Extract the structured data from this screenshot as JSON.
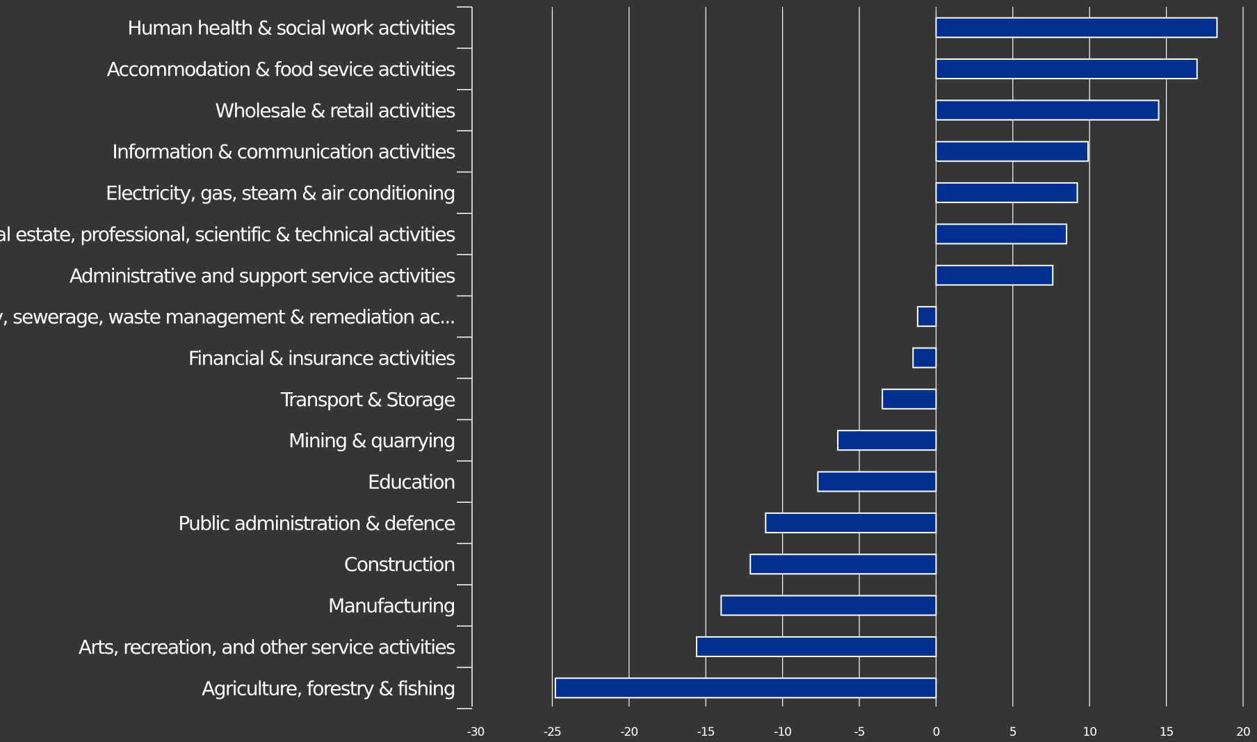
{
  "chart_data": {
    "type": "bar",
    "orientation": "horizontal",
    "categories": [
      "Human health & social work activities",
      "Accommodation & food sevice activities",
      "Wholesale & retail activities",
      "Information & communication activities",
      "Electricity, gas, steam & air conditioning",
      "Real estate, professional, scientific & technical activities",
      "Administrative and support service activities",
      "Water supply, sewerage, waste management & remediation ac...",
      "Financial & insurance activities",
      "Transport & Storage",
      "Mining & quarrying",
      "Education",
      "Public administration & defence",
      "Construction",
      "Manufacturing",
      "Arts, recreation, and other service activities",
      "Agriculture, forestry & fishing"
    ],
    "values": [
      18.3,
      17.0,
      14.5,
      9.9,
      9.2,
      8.5,
      7.6,
      -1.2,
      -1.5,
      -3.5,
      -6.4,
      -7.7,
      -11.1,
      -12.1,
      -14.0,
      -15.6,
      -24.8
    ],
    "xlim": [
      -30,
      20
    ],
    "xticks": [
      "-30",
      "-25",
      "-20",
      "-15",
      "-10",
      "-5",
      "0",
      "5",
      "10",
      "15",
      "20"
    ],
    "grid": "vertical",
    "bar_color": "#00308F",
    "bar_border_color": "#FFFFFF",
    "background_color": "#353535"
  }
}
